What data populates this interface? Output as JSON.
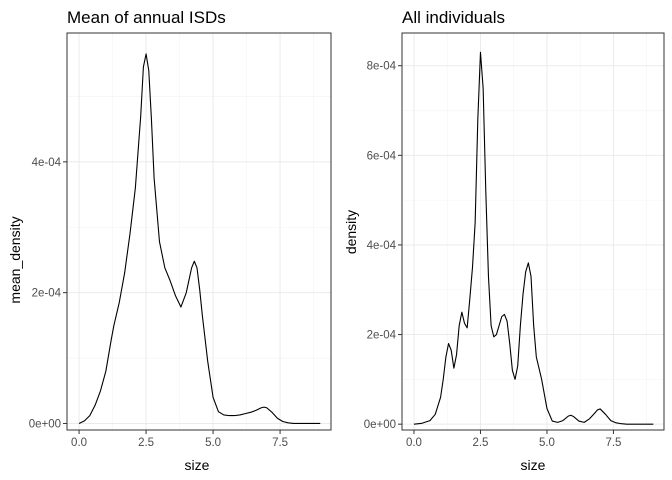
{
  "chart_data": [
    {
      "type": "line",
      "title": "Mean of annual ISDs",
      "xlabel": "size",
      "ylabel": "mean_density",
      "xlim": [
        -0.45,
        9.4
      ],
      "ylim": [
        -1e-05,
        0.000597
      ],
      "x_ticks": [
        0,
        2.5,
        5,
        7.5
      ],
      "x_tick_labels": [
        "0.0",
        "2.5",
        "5.0",
        "7.5"
      ],
      "y_ticks": [
        0,
        0.0002,
        0.0004
      ],
      "y_tick_labels": [
        "0e+00",
        "2e-04",
        "4e-04"
      ],
      "grid": true,
      "series": [
        {
          "x": [
            0.0,
            0.2,
            0.4,
            0.6,
            0.8,
            1.0,
            1.2,
            1.3,
            1.5,
            1.7,
            1.9,
            2.1,
            2.3,
            2.4,
            2.5,
            2.6,
            2.7,
            2.8,
            3.0,
            3.2,
            3.4,
            3.6,
            3.8,
            4.0,
            4.2,
            4.3,
            4.4,
            4.5,
            4.6,
            4.8,
            5.0,
            5.2,
            5.4,
            5.6,
            5.8,
            6.0,
            6.2,
            6.4,
            6.6,
            6.8,
            6.9,
            7.0,
            7.2,
            7.4,
            7.6,
            7.8,
            8.0,
            8.5,
            9.0
          ],
          "y": [
            0.0,
            4e-06,
            1.2e-05,
            2.8e-05,
            5e-05,
            8e-05,
            0.000128,
            0.00015,
            0.000185,
            0.00023,
            0.00029,
            0.00036,
            0.00047,
            0.000545,
            0.000565,
            0.00054,
            0.000465,
            0.000375,
            0.000278,
            0.000238,
            0.000218,
            0.000195,
            0.000178,
            0.0002,
            0.000238,
            0.000248,
            0.000238,
            0.000205,
            0.000165,
            9.5e-05,
            4e-05,
            1.8e-05,
            1.3e-05,
            1.2e-05,
            1.2e-05,
            1.3e-05,
            1.5e-05,
            1.7e-05,
            2e-05,
            2.4e-05,
            2.5e-05,
            2.4e-05,
            1.7e-05,
            8e-06,
            3e-06,
            1e-06,
            0.0,
            0.0,
            0.0
          ]
        }
      ]
    },
    {
      "type": "line",
      "title": "All individuals",
      "xlabel": "size",
      "ylabel": "density",
      "xlim": [
        -0.45,
        9.4
      ],
      "ylim": [
        -1.3e-05,
        0.000873
      ],
      "x_ticks": [
        0,
        2.5,
        5,
        7.5
      ],
      "x_tick_labels": [
        "0.0",
        "2.5",
        "5.0",
        "7.5"
      ],
      "y_ticks": [
        0,
        0.0002,
        0.0004,
        0.0006,
        0.0008
      ],
      "y_tick_labels": [
        "0e+00",
        "2e-04",
        "4e-04",
        "6e-04",
        "8e-04"
      ],
      "grid": true,
      "series": [
        {
          "x": [
            0.0,
            0.3,
            0.6,
            0.8,
            1.0,
            1.1,
            1.2,
            1.3,
            1.4,
            1.5,
            1.6,
            1.7,
            1.8,
            1.9,
            2.0,
            2.1,
            2.2,
            2.3,
            2.4,
            2.5,
            2.6,
            2.7,
            2.8,
            2.9,
            3.0,
            3.1,
            3.2,
            3.3,
            3.4,
            3.5,
            3.6,
            3.7,
            3.8,
            3.9,
            4.0,
            4.1,
            4.2,
            4.3,
            4.4,
            4.5,
            4.6,
            4.7,
            4.8,
            5.0,
            5.2,
            5.4,
            5.6,
            5.8,
            5.9,
            6.0,
            6.2,
            6.4,
            6.6,
            6.8,
            6.9,
            7.0,
            7.2,
            7.4,
            7.6,
            7.8,
            8.0,
            8.5,
            9.0
          ],
          "y": [
            0.0,
            2e-06,
            8e-06,
            2.2e-05,
            6e-05,
            0.0001,
            0.00015,
            0.00018,
            0.000165,
            0.000125,
            0.000155,
            0.00022,
            0.00025,
            0.000225,
            0.000215,
            0.00028,
            0.00035,
            0.00045,
            0.00068,
            0.00083,
            0.00075,
            0.00052,
            0.00033,
            0.00022,
            0.000195,
            0.0002,
            0.00022,
            0.00024,
            0.000245,
            0.00023,
            0.00018,
            0.00012,
            0.0001,
            0.00013,
            0.00022,
            0.00029,
            0.00034,
            0.00036,
            0.00033,
            0.00022,
            0.00015,
            0.000125,
            0.0001,
            3.5e-05,
            7e-06,
            4e-06,
            8e-06,
            1.8e-05,
            2e-05,
            1.7e-05,
            7e-06,
            4e-06,
            1.2e-05,
            2.5e-05,
            3.2e-05,
            3.4e-05,
            2.2e-05,
            8e-06,
            3e-06,
            1e-06,
            0.0,
            0.0,
            0.0
          ]
        }
      ]
    }
  ]
}
